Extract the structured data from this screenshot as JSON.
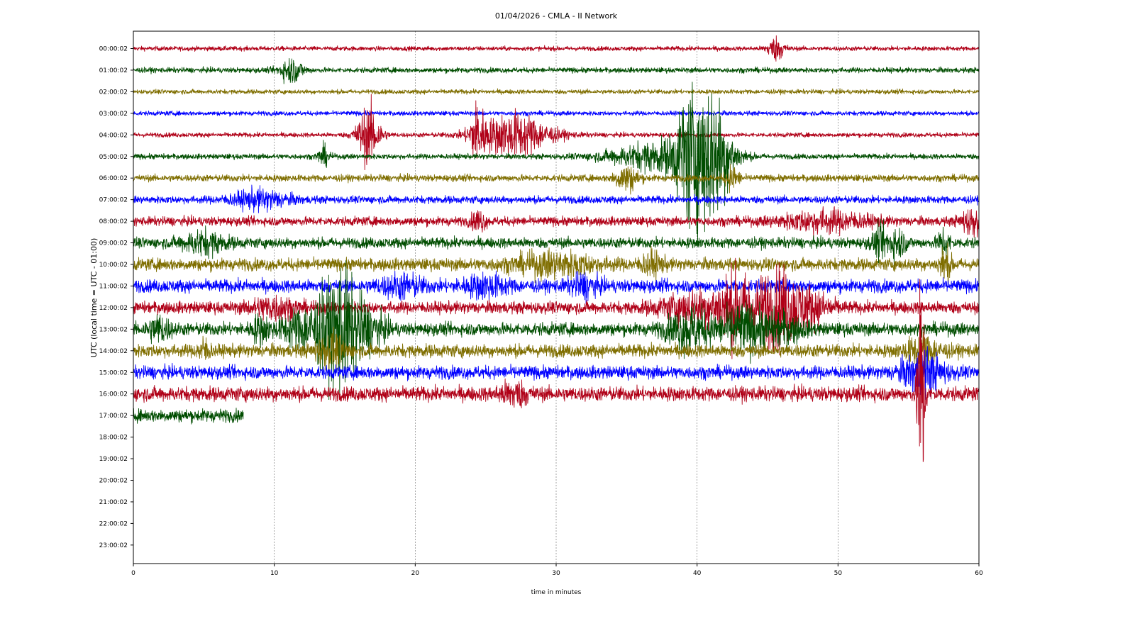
{
  "chart_data": {
    "type": "line",
    "title": "01/04/2026 - CMLA - II Network",
    "xlabel": "time in minutes",
    "ylabel": "UTC (local time = UTC - 01:00)",
    "xlim": [
      0,
      60
    ],
    "x_ticks": [
      0,
      10,
      20,
      30,
      40,
      50,
      60
    ],
    "grid": "vertical dashed lines at each x tick",
    "row_labels": [
      "00:00:02",
      "01:00:02",
      "02:00:02",
      "03:00:02",
      "04:00:02",
      "05:00:02",
      "06:00:02",
      "07:00:02",
      "08:00:02",
      "09:00:02",
      "10:00:02",
      "11:00:02",
      "12:00:02",
      "13:00:02",
      "14:00:02",
      "15:00:02",
      "16:00:02",
      "17:00:02",
      "18:00:02",
      "19:00:02",
      "20:00:02",
      "21:00:02",
      "22:00:02",
      "23:00:02"
    ],
    "color_cycle": [
      "#b00017",
      "#004d00",
      "#7f6e00",
      "#0000ff"
    ],
    "series": [
      {
        "row": 0,
        "end_minute": 60,
        "noise": 0.3,
        "events": [
          {
            "t": 45.6,
            "a": 1.5,
            "w": 0.6
          }
        ]
      },
      {
        "row": 1,
        "end_minute": 60,
        "noise": 0.35,
        "events": [
          {
            "t": 11.2,
            "a": 1.6,
            "w": 0.8
          }
        ]
      },
      {
        "row": 2,
        "end_minute": 60,
        "noise": 0.3,
        "events": []
      },
      {
        "row": 3,
        "end_minute": 60,
        "noise": 0.3,
        "events": []
      },
      {
        "row": 4,
        "end_minute": 60,
        "noise": 0.3,
        "events": [
          {
            "t": 16.7,
            "a": 4.0,
            "w": 0.8
          },
          {
            "t": 24.4,
            "a": 3.5,
            "w": 0.5
          },
          {
            "t": 27.0,
            "a": 3.0,
            "w": 2.5
          }
        ]
      },
      {
        "row": 5,
        "end_minute": 60,
        "noise": 0.35,
        "events": [
          {
            "t": 13.5,
            "a": 1.3,
            "w": 0.4
          },
          {
            "t": 37.5,
            "a": 2.0,
            "w": 3.5
          },
          {
            "t": 39.2,
            "a": 4.5,
            "w": 0.8
          },
          {
            "t": 40.8,
            "a": 9.0,
            "w": 1.5
          }
        ]
      },
      {
        "row": 6,
        "end_minute": 60,
        "noise": 0.45,
        "events": [
          {
            "t": 35.0,
            "a": 1.8,
            "w": 0.8
          },
          {
            "t": 42.5,
            "a": 1.5,
            "w": 0.5
          }
        ]
      },
      {
        "row": 7,
        "end_minute": 60,
        "noise": 0.5,
        "events": [
          {
            "t": 9.0,
            "a": 1.2,
            "w": 2.0
          }
        ]
      },
      {
        "row": 8,
        "end_minute": 60,
        "noise": 0.6,
        "events": [
          {
            "t": 24.5,
            "a": 1.3,
            "w": 0.5
          },
          {
            "t": 49.0,
            "a": 1.3,
            "w": 3.0
          },
          {
            "t": 59.5,
            "a": 1.6,
            "w": 0.8
          }
        ]
      },
      {
        "row": 9,
        "end_minute": 60,
        "noise": 0.7,
        "events": [
          {
            "t": 5.0,
            "a": 1.4,
            "w": 1.5
          },
          {
            "t": 53.0,
            "a": 1.8,
            "w": 0.6
          },
          {
            "t": 54.2,
            "a": 1.8,
            "w": 0.6
          },
          {
            "t": 57.5,
            "a": 1.8,
            "w": 0.4
          }
        ]
      },
      {
        "row": 10,
        "end_minute": 60,
        "noise": 0.8,
        "events": [
          {
            "t": 30.0,
            "a": 1.4,
            "w": 3.0
          },
          {
            "t": 36.8,
            "a": 1.3,
            "w": 0.8
          },
          {
            "t": 57.6,
            "a": 2.2,
            "w": 0.4
          }
        ]
      },
      {
        "row": 11,
        "end_minute": 60,
        "noise": 0.85,
        "events": [
          {
            "t": 19.0,
            "a": 1.3,
            "w": 1.5
          },
          {
            "t": 25.0,
            "a": 1.3,
            "w": 1.5
          },
          {
            "t": 32.0,
            "a": 1.3,
            "w": 1.0
          }
        ]
      },
      {
        "row": 12,
        "end_minute": 60,
        "noise": 0.8,
        "events": [
          {
            "t": 10.0,
            "a": 1.4,
            "w": 1.5
          },
          {
            "t": 40.0,
            "a": 2.0,
            "w": 2.5
          },
          {
            "t": 42.7,
            "a": 4.0,
            "w": 1.2
          },
          {
            "t": 45.6,
            "a": 5.0,
            "w": 1.6
          },
          {
            "t": 48.0,
            "a": 2.0,
            "w": 1.5
          }
        ]
      },
      {
        "row": 13,
        "end_minute": 60,
        "noise": 0.85,
        "events": [
          {
            "t": 1.8,
            "a": 1.6,
            "w": 0.8
          },
          {
            "t": 9.0,
            "a": 1.6,
            "w": 0.6
          },
          {
            "t": 12.0,
            "a": 2.5,
            "w": 1.5
          },
          {
            "t": 13.8,
            "a": 4.5,
            "w": 1.0
          },
          {
            "t": 14.8,
            "a": 6.0,
            "w": 0.6
          },
          {
            "t": 15.8,
            "a": 4.0,
            "w": 0.8
          },
          {
            "t": 17.0,
            "a": 2.0,
            "w": 1.0
          },
          {
            "t": 39.5,
            "a": 2.8,
            "w": 1.5
          },
          {
            "t": 43.2,
            "a": 3.0,
            "w": 1.5
          },
          {
            "t": 46.0,
            "a": 1.8,
            "w": 1.5
          }
        ]
      },
      {
        "row": 14,
        "end_minute": 60,
        "noise": 0.85,
        "events": [
          {
            "t": 5.0,
            "a": 1.4,
            "w": 0.4
          },
          {
            "t": 14.0,
            "a": 2.0,
            "w": 1.0
          },
          {
            "t": 56.0,
            "a": 1.8,
            "w": 1.2
          }
        ]
      },
      {
        "row": 15,
        "end_minute": 60,
        "noise": 0.85,
        "events": [
          {
            "t": 56.0,
            "a": 2.5,
            "w": 1.5
          }
        ]
      },
      {
        "row": 16,
        "end_minute": 60,
        "noise": 0.95,
        "events": [
          {
            "t": 27.0,
            "a": 1.4,
            "w": 1.0
          },
          {
            "t": 55.9,
            "a": 19.0,
            "w": 0.25
          }
        ]
      },
      {
        "row": 17,
        "end_minute": 7.8,
        "noise": 0.85,
        "events": []
      }
    ]
  }
}
